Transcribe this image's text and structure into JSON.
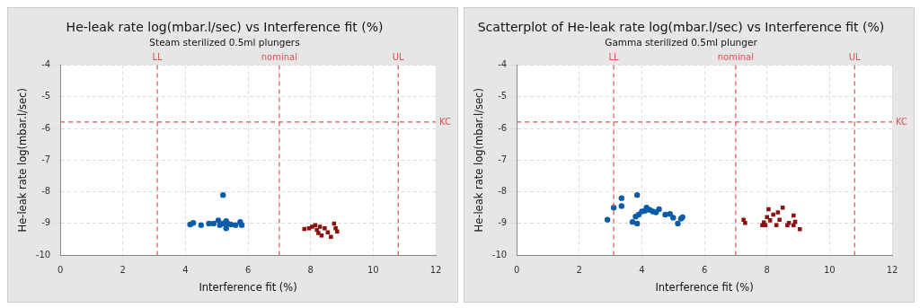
{
  "chart_data": [
    {
      "type": "scatter",
      "title": "He-leak rate log(mbar.l/sec) vs Interference fit (%)",
      "subtitle": "Steam sterilized 0.5ml plungers",
      "xlabel": "Interference fit (%)",
      "ylabel": "He-leak rate log(mbar.l/sec)",
      "xlim": [
        0,
        12
      ],
      "xticks": [
        0,
        2,
        4,
        6,
        8,
        10,
        12
      ],
      "ylim": [
        -10,
        -4
      ],
      "yticks": [
        -10,
        -9,
        -8,
        -7,
        -6,
        -5,
        -4
      ],
      "grid": true,
      "series": [
        {
          "color": "#0b5ca8",
          "marker": "circle",
          "x": [
            4.15,
            4.25,
            4.5,
            4.75,
            4.9,
            5.05,
            5.1,
            5.2,
            5.2,
            5.3,
            5.3,
            5.35,
            5.45,
            5.6,
            5.75,
            5.8
          ],
          "values": [
            -9.03,
            -8.98,
            -9.05,
            -9.0,
            -9.0,
            -8.9,
            -9.05,
            -8.1,
            -9.0,
            -8.92,
            -9.15,
            -9.0,
            -9.03,
            -9.05,
            -8.95,
            -9.05
          ]
        },
        {
          "color": "#8b1111",
          "marker": "square",
          "x": [
            7.8,
            7.95,
            8.05,
            8.15,
            8.2,
            8.25,
            8.3,
            8.35,
            8.45,
            8.55,
            8.65,
            8.75,
            8.8,
            8.85
          ],
          "values": [
            -9.17,
            -9.15,
            -9.1,
            -9.05,
            -9.2,
            -9.3,
            -9.1,
            -9.38,
            -9.15,
            -9.28,
            -9.42,
            -9.0,
            -9.15,
            -9.25
          ]
        }
      ],
      "ref_lines": [
        {
          "axis": "x",
          "value": 3.1,
          "label": "LL",
          "color": "#e05050",
          "line_style": "dashed"
        },
        {
          "axis": "x",
          "value": 7.0,
          "label": "nominal",
          "color": "#e05050",
          "line_style": "dashed"
        },
        {
          "axis": "x",
          "value": 10.8,
          "label": "UL",
          "color": "#e05050",
          "line_style": "dashed"
        },
        {
          "axis": "y",
          "value": -5.8,
          "label": "KC",
          "color": "#e05050",
          "line_style": "dashed"
        }
      ]
    },
    {
      "type": "scatter",
      "title": "Scatterplot of He-leak rate log(mbar.l/sec) vs Interference fit (%)",
      "subtitle": "Gamma sterilized 0.5ml plunger",
      "xlabel": "Interference fit (%)",
      "ylabel": "He-leak rate log(mbar.l/sec)",
      "xlim": [
        0,
        12
      ],
      "xticks": [
        0,
        2,
        4,
        6,
        8,
        10,
        12
      ],
      "ylim": [
        -10,
        -4
      ],
      "yticks": [
        -10,
        -9,
        -8,
        -7,
        -6,
        -5,
        -4
      ],
      "grid": true,
      "series": [
        {
          "color": "#0b5ca8",
          "marker": "circle",
          "x": [
            2.9,
            3.1,
            3.35,
            3.35,
            3.7,
            3.8,
            3.85,
            3.85,
            3.9,
            4.0,
            4.1,
            4.15,
            4.25,
            4.35,
            4.45,
            4.55,
            4.75,
            4.9,
            5.0,
            5.15,
            5.25,
            5.3
          ],
          "values": [
            -8.88,
            -8.5,
            -8.45,
            -8.2,
            -8.95,
            -8.78,
            -8.1,
            -9.0,
            -8.72,
            -8.62,
            -8.6,
            -8.5,
            -8.57,
            -8.62,
            -8.65,
            -8.55,
            -8.72,
            -8.7,
            -8.82,
            -9.0,
            -8.85,
            -8.8
          ]
        },
        {
          "color": "#8b1111",
          "marker": "square",
          "x": [
            7.25,
            7.3,
            7.85,
            7.9,
            7.95,
            8.0,
            8.05,
            8.1,
            8.2,
            8.3,
            8.35,
            8.4,
            8.5,
            8.65,
            8.7,
            8.85,
            8.85,
            8.9,
            9.05
          ],
          "values": [
            -8.88,
            -8.98,
            -9.05,
            -8.97,
            -9.05,
            -8.8,
            -8.55,
            -8.9,
            -8.72,
            -9.05,
            -8.65,
            -8.88,
            -8.5,
            -9.05,
            -8.98,
            -8.75,
            -9.05,
            -8.95,
            -9.18
          ]
        }
      ],
      "ref_lines": [
        {
          "axis": "x",
          "value": 3.1,
          "label": "LL",
          "color": "#e05050",
          "line_style": "dashed"
        },
        {
          "axis": "x",
          "value": 7.0,
          "label": "nominal",
          "color": "#e05050",
          "line_style": "dashed"
        },
        {
          "axis": "x",
          "value": 10.8,
          "label": "UL",
          "color": "#e05050",
          "line_style": "dashed"
        },
        {
          "axis": "y",
          "value": -5.8,
          "label": "KC",
          "color": "#e05050",
          "line_style": "dashed"
        }
      ]
    }
  ]
}
